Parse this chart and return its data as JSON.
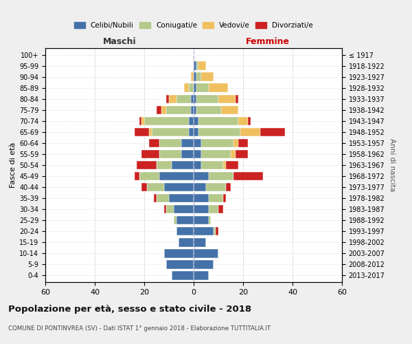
{
  "age_groups": [
    "0-4",
    "5-9",
    "10-14",
    "15-19",
    "20-24",
    "25-29",
    "30-34",
    "35-39",
    "40-44",
    "45-49",
    "50-54",
    "55-59",
    "60-64",
    "65-69",
    "70-74",
    "75-79",
    "80-84",
    "85-89",
    "90-94",
    "95-99",
    "100+"
  ],
  "birth_years": [
    "2013-2017",
    "2008-2012",
    "2003-2007",
    "1998-2002",
    "1993-1997",
    "1988-1992",
    "1983-1987",
    "1978-1982",
    "1973-1977",
    "1968-1972",
    "1963-1967",
    "1958-1962",
    "1953-1957",
    "1948-1952",
    "1943-1947",
    "1938-1942",
    "1933-1937",
    "1928-1932",
    "1923-1927",
    "1918-1922",
    "≤ 1917"
  ],
  "colors": {
    "celibi": "#4472a8",
    "coniugati": "#b5c98b",
    "vedovi": "#f0c060",
    "divorziati": "#cc2222"
  },
  "males": {
    "celibi": [
      9,
      11,
      12,
      6,
      7,
      7,
      8,
      10,
      12,
      14,
      9,
      5,
      5,
      2,
      2,
      1,
      1,
      0,
      0,
      0,
      0
    ],
    "coniugati": [
      0,
      0,
      0,
      0,
      0,
      1,
      3,
      5,
      7,
      8,
      6,
      9,
      9,
      15,
      18,
      10,
      6,
      2,
      0,
      0,
      0
    ],
    "vedovi": [
      0,
      0,
      0,
      0,
      0,
      0,
      0,
      0,
      0,
      0,
      0,
      0,
      0,
      1,
      1,
      2,
      3,
      2,
      1,
      0,
      0
    ],
    "divorziati": [
      0,
      0,
      0,
      0,
      0,
      0,
      1,
      1,
      2,
      2,
      8,
      7,
      4,
      6,
      1,
      2,
      1,
      0,
      0,
      0,
      0
    ]
  },
  "females": {
    "celibi": [
      6,
      8,
      10,
      5,
      8,
      6,
      6,
      6,
      5,
      6,
      3,
      3,
      3,
      2,
      2,
      1,
      1,
      1,
      1,
      1,
      0
    ],
    "coniugati": [
      0,
      0,
      0,
      0,
      1,
      1,
      4,
      6,
      8,
      10,
      9,
      12,
      13,
      17,
      16,
      10,
      9,
      5,
      2,
      1,
      0
    ],
    "vedovi": [
      0,
      0,
      0,
      0,
      0,
      0,
      0,
      0,
      0,
      0,
      1,
      2,
      2,
      8,
      4,
      7,
      7,
      8,
      5,
      3,
      0
    ],
    "divorziati": [
      0,
      0,
      0,
      0,
      1,
      0,
      2,
      1,
      2,
      12,
      5,
      5,
      4,
      10,
      1,
      0,
      1,
      0,
      0,
      0,
      0
    ]
  },
  "xlim": 60,
  "title": "Popolazione per età, sesso e stato civile - 2018",
  "subtitle": "COMUNE DI PONTINVREA (SV) - Dati ISTAT 1° gennaio 2018 - Elaborazione TUTTITALIA.IT",
  "legend_labels": [
    "Celibi/Nubili",
    "Coniugati/e",
    "Vedovi/e",
    "Divorziati/e"
  ],
  "ylabel_left": "Fasce di età",
  "ylabel_right": "Anni di nascita",
  "xlabel_left": "Maschi",
  "xlabel_right": "Femmine",
  "bg_color": "#efefef",
  "plot_bg_color": "#ffffff"
}
